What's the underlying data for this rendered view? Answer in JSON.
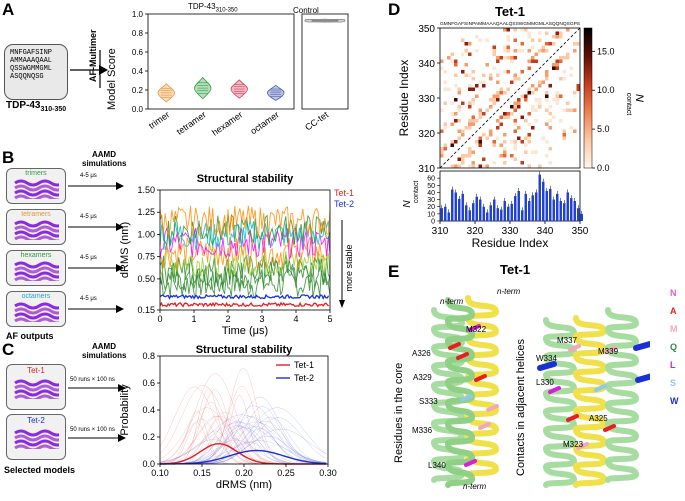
{
  "panels": {
    "A": {
      "letter": "A",
      "sequence_lines": [
        "MNFGAFSINP",
        "AMMAAAQAAL",
        "QSSWGMMGML",
        "ASQQNQSG"
      ],
      "protein_label": "TDP-43",
      "protein_sub": "310-350",
      "arrow_label": "AF-Multimer",
      "group_label_main": "TDP-43",
      "group_label_sub": "310-350",
      "control_label": "Control",
      "y_label": "Model Score",
      "chart_data": {
        "type": "violin",
        "categories": [
          "trimer",
          "tetramer",
          "hexamer",
          "octamer",
          "CC-tet"
        ],
        "medians": [
          0.17,
          0.22,
          0.21,
          0.17,
          0.93
        ],
        "spread": [
          0.06,
          0.07,
          0.06,
          0.05,
          0.01
        ],
        "colors": [
          "#e8953a",
          "#2f9e3f",
          "#d1405c",
          "#4a5fb0",
          "#888888"
        ],
        "ylim": [
          0.0,
          1.0
        ],
        "yticks": [
          0.0,
          0.2,
          0.4,
          0.6,
          0.8,
          1.0
        ]
      }
    },
    "B": {
      "letter": "B",
      "sim_label_1": "AAMD",
      "sim_label_2": "simulations",
      "mini_titles": [
        "trimers",
        "tetramers",
        "hexamers",
        "octamers"
      ],
      "mini_title_colors": [
        "#2f9e3f",
        "#e8953a",
        "#2f9e3f",
        "#27a6c9"
      ],
      "time_label": "4-5 μs",
      "outputs_label": "AF outputs",
      "chart_data": {
        "type": "line",
        "title": "Structural stability",
        "xlabel": "Time (μs)",
        "ylabel": "dRMS (nm)",
        "xlim": [
          0,
          5
        ],
        "ylim": [
          0.15,
          1.5
        ],
        "xticks": [
          0,
          1,
          2,
          3,
          4,
          5
        ],
        "yticks": [
          0.15,
          0.5,
          0.75,
          1.0,
          1.25,
          1.5
        ],
        "yticklabels": [
          "0.15",
          "0.50",
          "0.75",
          "1.00",
          "1.25",
          "1.50"
        ],
        "series": [
          {
            "name": "Tet-1",
            "color": "#e02020",
            "level": 0.21
          },
          {
            "name": "Tet-2",
            "color": "#1a2fd6",
            "level": 0.3
          }
        ],
        "background_levels": [
          0.45,
          0.55,
          0.6,
          0.7,
          0.8,
          0.9,
          1.0,
          1.05,
          1.15
        ],
        "background_colors": [
          "#2e8b2e",
          "#2e8b2e",
          "#2e8b2e",
          "#9acd32",
          "#ff8c00",
          "#ff00ff",
          "#00bcd4",
          "#2e8b2e",
          "#ff8c00"
        ],
        "side_label": "more stable"
      }
    },
    "C": {
      "letter": "C",
      "sim_label_1": "AAMD",
      "sim_label_2": "simulations",
      "model_labels": [
        "Tet-1",
        "Tet-2"
      ],
      "run_label": "50 runs × 100 ns",
      "selected_label": "Selected models",
      "chart_data": {
        "type": "line",
        "title": "Structural stability",
        "xlabel": "dRMS (nm)",
        "ylabel": "Probability",
        "xlim": [
          0.1,
          0.3
        ],
        "ylim": [
          0.0,
          0.8
        ],
        "xticks": [
          0.1,
          0.15,
          0.2,
          0.25,
          0.3
        ],
        "xticklabels": [
          "0.10",
          "0.15",
          "0.20",
          "0.25",
          "0.30"
        ],
        "yticks": [
          0.0,
          0.2,
          0.4,
          0.6,
          0.8
        ],
        "series": [
          {
            "name": "Tet-1",
            "color": "#e02020",
            "mean": 0.17,
            "sd": 0.022,
            "peak": 0.15
          },
          {
            "name": "Tet-2",
            "color": "#1a2fd6",
            "mean": 0.215,
            "sd": 0.032,
            "peak": 0.1
          }
        ]
      }
    },
    "D": {
      "letter": "D",
      "title": "Tet-1",
      "sequence_axis": "GMNFGAFSINPAMMAAAQAALQSSWGMMGMLASQQNQSGPS",
      "colorbar_label": "N",
      "colorbar_sub": "contact",
      "colorbar_ticks": [
        "0.0",
        "5.0",
        "10.0",
        "15.0"
      ],
      "chart_data": {
        "type": "heatmap",
        "xlabel": "Residue Index",
        "ylabel": "Residue Index",
        "xlim": [
          310,
          350
        ],
        "ylim": [
          310,
          350
        ],
        "ticks": [
          310,
          320,
          330,
          340,
          350
        ],
        "bar_ylabel": "N",
        "bar_ysub": "contact",
        "bar_yticks": [
          0,
          10,
          20,
          30,
          40,
          50,
          60
        ],
        "bar_values": [
          18,
          20,
          12,
          44,
          40,
          31,
          38,
          22,
          15,
          25,
          34,
          30,
          20,
          12,
          22,
          30,
          18,
          16,
          28,
          20,
          24,
          35,
          42,
          15,
          38,
          28,
          36,
          40,
          65,
          55,
          42,
          45,
          30,
          38,
          28,
          25,
          40,
          32,
          28,
          18,
          10
        ]
      }
    },
    "E": {
      "letter": "E",
      "title": "Tet-1",
      "left_caption": "Residues in the core",
      "right_caption": "Contacts in adjacent helices",
      "nterm": "n-term",
      "left_residues": [
        "M322",
        "A326",
        "A329",
        "S333",
        "M336",
        "L340"
      ],
      "right_residues": [
        "M337",
        "M339",
        "W334",
        "L330",
        "A325",
        "M323"
      ],
      "legend": [
        {
          "code": "N",
          "color": "#e060c8"
        },
        {
          "code": "A",
          "color": "#e81f1f"
        },
        {
          "code": "M",
          "color": "#f2a8b8"
        },
        {
          "code": "Q",
          "color": "#2e8b3e"
        },
        {
          "code": "L",
          "color": "#d61fd6"
        },
        {
          "code": "S",
          "color": "#8ec9e8"
        },
        {
          "code": "W",
          "color": "#1a2fd6"
        }
      ]
    }
  }
}
